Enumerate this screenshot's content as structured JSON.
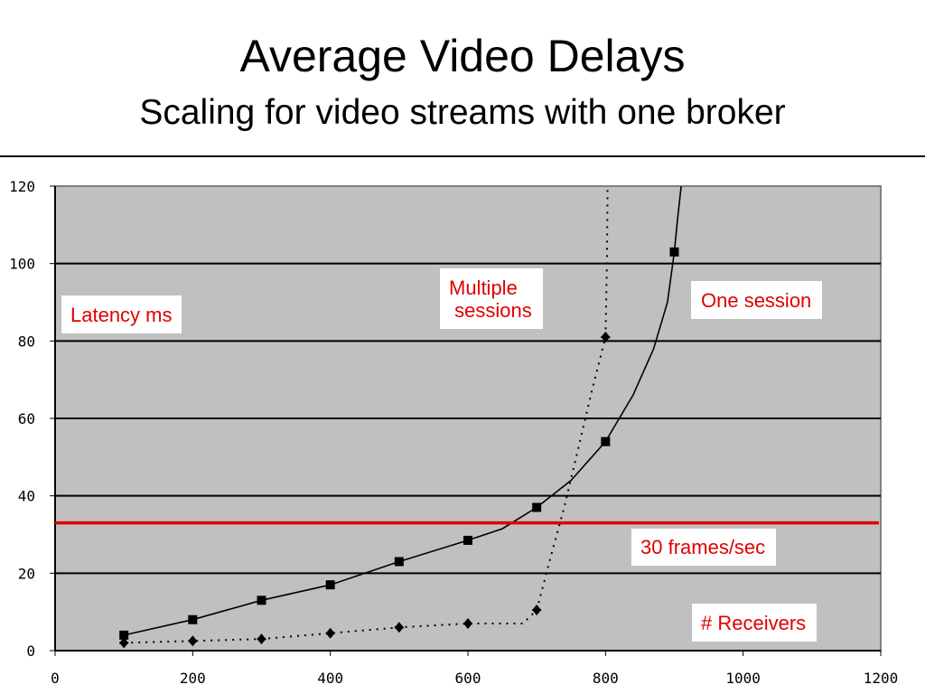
{
  "title": "Average Video Delays",
  "subtitle": "Scaling for video streams with one broker",
  "annotations": {
    "latency": "Latency ms",
    "multiple": "Multiple\n sessions",
    "one_session": "One session",
    "frames": "30 frames/sec",
    "receivers": "# Receivers"
  },
  "chart_data": {
    "type": "line",
    "xlim": [
      0,
      1200
    ],
    "ylim": [
      0,
      120
    ],
    "x_ticks": [
      "0",
      "200",
      "400",
      "600",
      "800",
      "1000",
      "1200"
    ],
    "y_ticks": [
      "0",
      "20",
      "40",
      "60",
      "80",
      "100",
      "120"
    ],
    "grid": true,
    "plot_background": "#c0c0c0",
    "threshold_line": {
      "value": 33,
      "color": "#e00000",
      "label": "30 frames/sec"
    },
    "series": [
      {
        "label": "One session",
        "style": "solid",
        "marker": "square",
        "color": "#000000",
        "points": [
          [
            100,
            4
          ],
          [
            200,
            8
          ],
          [
            300,
            13
          ],
          [
            400,
            17
          ],
          [
            500,
            23
          ],
          [
            600,
            28.5
          ],
          [
            700,
            37
          ],
          [
            800,
            54
          ],
          [
            900,
            103
          ]
        ],
        "curve": [
          [
            100,
            4
          ],
          [
            200,
            8
          ],
          [
            300,
            13
          ],
          [
            400,
            17
          ],
          [
            500,
            23
          ],
          [
            600,
            28.5
          ],
          [
            650,
            31.5
          ],
          [
            700,
            37
          ],
          [
            750,
            44
          ],
          [
            800,
            54
          ],
          [
            840,
            66
          ],
          [
            870,
            78
          ],
          [
            890,
            90
          ],
          [
            900,
            103
          ],
          [
            905,
            112
          ],
          [
            910,
            120
          ]
        ]
      },
      {
        "label": "Multiple sessions",
        "style": "dotted",
        "marker": "diamond",
        "color": "#000000",
        "points": [
          [
            100,
            2
          ],
          [
            200,
            2.5
          ],
          [
            300,
            3
          ],
          [
            400,
            4.5
          ],
          [
            500,
            6
          ],
          [
            600,
            7
          ],
          [
            700,
            10.5
          ],
          [
            800,
            81
          ]
        ],
        "curve": [
          [
            100,
            2
          ],
          [
            200,
            2.5
          ],
          [
            300,
            3
          ],
          [
            400,
            4.5
          ],
          [
            500,
            6
          ],
          [
            600,
            7
          ],
          [
            680,
            7
          ],
          [
            700,
            10.5
          ],
          [
            720,
            24
          ],
          [
            740,
            37
          ],
          [
            760,
            52
          ],
          [
            780,
            67
          ],
          [
            800,
            81
          ],
          [
            802,
            100
          ],
          [
            803,
            120
          ]
        ]
      }
    ]
  }
}
